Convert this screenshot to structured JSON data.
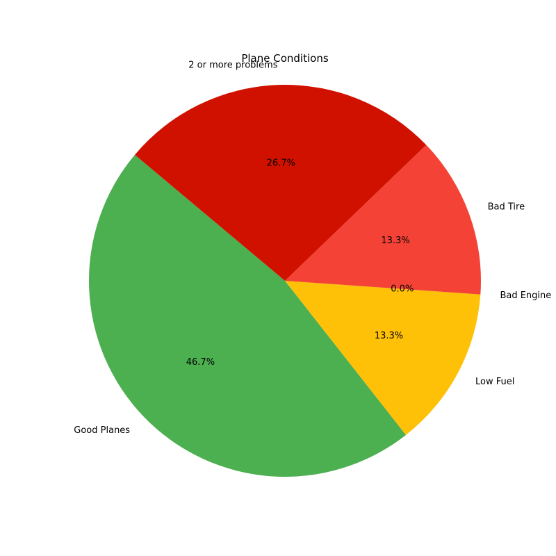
{
  "chart_data": {
    "type": "pie",
    "title": "Plane Conditions",
    "categories": [
      "Good Planes",
      "Low Fuel",
      "Bad Engine",
      "Bad Tire",
      "2 or more problems"
    ],
    "values": [
      46.7,
      13.3,
      0.0,
      13.3,
      26.7
    ],
    "percent_labels": [
      "46.7%",
      "13.3%",
      "0.0%",
      "13.3%",
      "26.7%"
    ],
    "colors": [
      "#4caf50",
      "#ffc107",
      "#ff9800",
      "#f44336",
      "#d01100"
    ],
    "start_angle_deg": 140,
    "direction": "counterclockwise",
    "legend": "none"
  }
}
